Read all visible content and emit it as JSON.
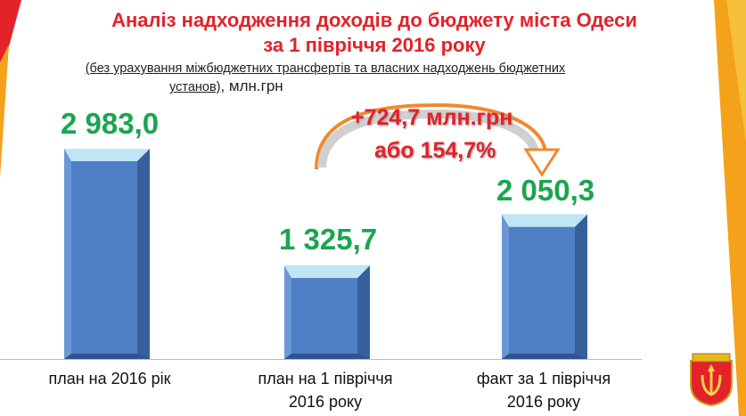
{
  "header": {
    "title_line1": "Аналіз надходження доходів до бюджету міста Одеси",
    "title_line2": "за 1 півріччя 2016 року",
    "subtitle_line1": "(без урахування міжбюджетних трансфертів та власних надходжень бюджетних",
    "subtitle_line2_underlined": "установ)",
    "subtitle_unit": ", млн.грн"
  },
  "annotation": {
    "delta_line1": "+724,7 млн.грн",
    "delta_line2": "або 154,7%"
  },
  "colors": {
    "bar": "#4f7fc4",
    "value_label": "#1aa550",
    "title": "#e3222a",
    "accent_stripe": "#f4a11c",
    "arrow": "#f08a2c"
  },
  "chart_data": {
    "type": "bar",
    "title": "Аналіз надходження доходів до бюджету міста Одеси за 1 півріччя 2016 року",
    "categories": [
      "план на 2016 рік",
      "план на 1 півріччя 2016 року",
      "факт за 1 півріччя 2016 року"
    ],
    "categories_display": [
      [
        "план на 2016 рік"
      ],
      [
        "план на 1 півріччя",
        "2016 року"
      ],
      [
        "факт за 1 півріччя",
        "2016 року"
      ]
    ],
    "values": [
      2983.0,
      1325.7,
      2050.3
    ],
    "value_labels": [
      "2 983,0",
      "1 325,7",
      "2 050,3"
    ],
    "ylabel": "млн.грн",
    "ylim": [
      0,
      2983.0
    ],
    "grid": false,
    "legend": "none"
  }
}
